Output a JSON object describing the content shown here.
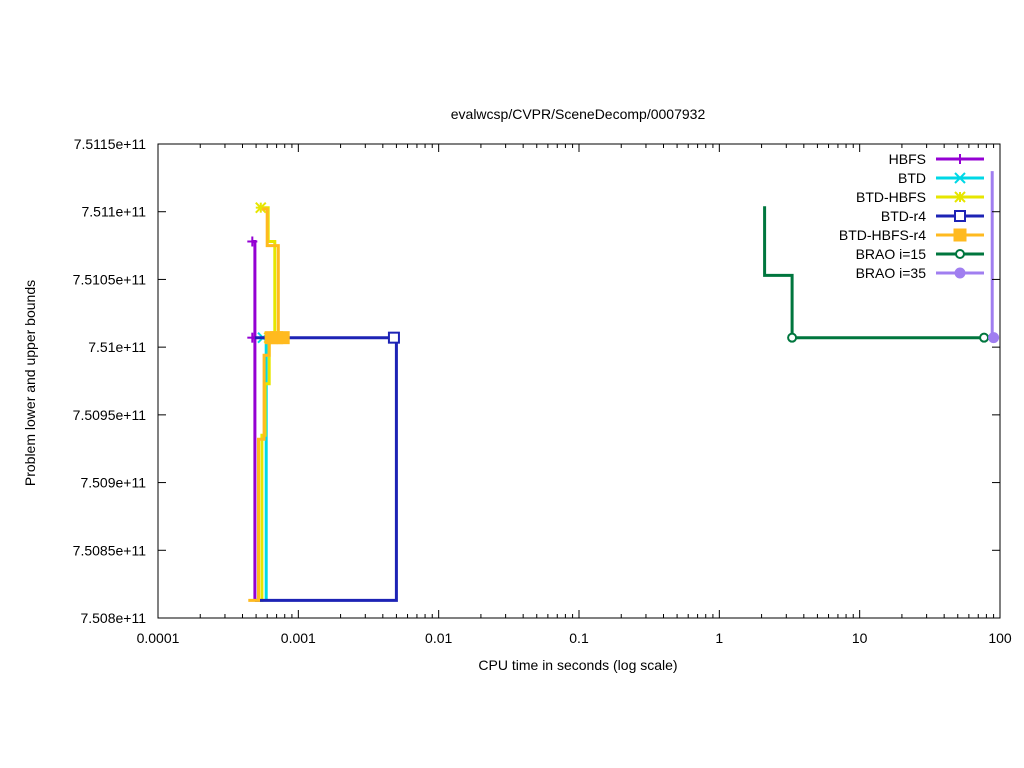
{
  "chart_data": {
    "type": "line",
    "title": "evalwcsp/CVPR/SceneDecomp/0007932",
    "xlabel": "CPU time in seconds (log scale)",
    "ylabel": "Problem lower and upper bounds",
    "xscale": "log",
    "xlim": [
      0.0001,
      100
    ],
    "ylim": [
      750800000000,
      751150000000
    ],
    "xticks": [
      {
        "v": 0.0001,
        "label": "0.0001"
      },
      {
        "v": 0.001,
        "label": "0.001"
      },
      {
        "v": 0.01,
        "label": "0.01"
      },
      {
        "v": 0.1,
        "label": "0.1"
      },
      {
        "v": 1,
        "label": "1"
      },
      {
        "v": 10,
        "label": "10"
      },
      {
        "v": 100,
        "label": "100"
      }
    ],
    "yticks": [
      {
        "v": 750800000000,
        "label": "7.508e+11"
      },
      {
        "v": 750850000000,
        "label": "7.5085e+11"
      },
      {
        "v": 750900000000,
        "label": "7.509e+11"
      },
      {
        "v": 750950000000,
        "label": "7.5095e+11"
      },
      {
        "v": 751000000000,
        "label": "7.51e+11"
      },
      {
        "v": 751050000000,
        "label": "7.5105e+11"
      },
      {
        "v": 751100000000,
        "label": "7.511e+11"
      },
      {
        "v": 751150000000,
        "label": "7.5115e+11"
      }
    ],
    "grid": false,
    "legend_position": "top-right",
    "series": [
      {
        "name": "HBFS",
        "color": "#9400d3",
        "marker": "plus",
        "lines": [
          [
            [
              0.00047,
              751078000000
            ],
            [
              0.00049,
              751078000000
            ],
            [
              0.00049,
              751007000000
            ]
          ],
          [
            [
              0.00047,
              751007000000
            ],
            [
              0.00049,
              751007000000
            ],
            [
              0.00049,
              750813000000
            ]
          ]
        ],
        "markers": [
          [
            0.00047,
            751007000000
          ],
          [
            0.00047,
            751078000000
          ]
        ]
      },
      {
        "name": "BTD",
        "color": "#00d8e6",
        "marker": "x",
        "lines": [
          [
            [
              0.00056,
              751007000000
            ],
            [
              0.00059,
              751007000000
            ],
            [
              0.00059,
              750813000000
            ]
          ]
        ],
        "markers": [
          [
            0.00056,
            751007000000
          ]
        ]
      },
      {
        "name": "BTD-HBFS",
        "color": "#e6e600",
        "marker": "star",
        "lines": [
          [
            [
              0.00052,
              751103000000
            ],
            [
              0.00061,
              751103000000
            ],
            [
              0.00061,
              751078000000
            ],
            [
              0.00068,
              751078000000
            ],
            [
              0.00068,
              751007000000
            ]
          ],
          [
            [
              0.00053,
              750813000000
            ],
            [
              0.00055,
              750813000000
            ],
            [
              0.00055,
              750935000000
            ],
            [
              0.00058,
              750935000000
            ],
            [
              0.00058,
              750973000000
            ],
            [
              0.00062,
              750973000000
            ],
            [
              0.00062,
              751007000000
            ]
          ]
        ],
        "markers": [
          [
            0.00054,
            751103000000
          ],
          [
            0.00062,
            751007000000
          ]
        ]
      },
      {
        "name": "BTD-r4",
        "color": "#1d23b5",
        "marker": "open-square",
        "lines": [
          [
            [
              0.00049,
              751007000000
            ],
            [
              0.005,
              751007000000
            ],
            [
              0.005,
              750813000000
            ],
            [
              0.00049,
              750813000000
            ]
          ]
        ],
        "markers": [
          [
            0.0048,
            751007000000
          ]
        ]
      },
      {
        "name": "BTD-HBFS-r4",
        "color": "#ffba1f",
        "marker": "filled-square",
        "lines": [
          [
            [
              0.00055,
              751102000000
            ],
            [
              0.0006,
              751102000000
            ],
            [
              0.0006,
              751075000000
            ],
            [
              0.00072,
              751075000000
            ],
            [
              0.00072,
              751007000000
            ]
          ],
          [
            [
              0.00044,
              750813000000
            ],
            [
              0.00052,
              750813000000
            ],
            [
              0.00052,
              750932000000
            ],
            [
              0.00057,
              750932000000
            ],
            [
              0.00057,
              750994000000
            ],
            [
              0.00062,
              750994000000
            ],
            [
              0.00062,
              751007000000
            ],
            [
              0.00082,
              751007000000
            ]
          ]
        ],
        "markers": [
          [
            0.00064,
            751007000000
          ],
          [
            0.0007,
            751007000000
          ],
          [
            0.00078,
            751007000000
          ]
        ]
      },
      {
        "name": "BRAO i=15",
        "color": "#00763e",
        "marker": "open-circle",
        "lines": [
          [
            [
              2.1,
              751104000000
            ],
            [
              2.1,
              751053000000
            ],
            [
              3.3,
              751053000000
            ],
            [
              3.3,
              751007000000
            ],
            [
              77,
              751007000000
            ]
          ]
        ],
        "markers": [
          [
            3.3,
            751007000000
          ],
          [
            77,
            751007000000
          ]
        ]
      },
      {
        "name": "BRAO i=35",
        "color": "#a07ef0",
        "marker": "filled-circle",
        "lines": [
          [
            [
              88,
              751130000000
            ],
            [
              88,
              751007000000
            ]
          ]
        ],
        "markers": [
          [
            90,
            751007000000
          ]
        ]
      }
    ]
  }
}
